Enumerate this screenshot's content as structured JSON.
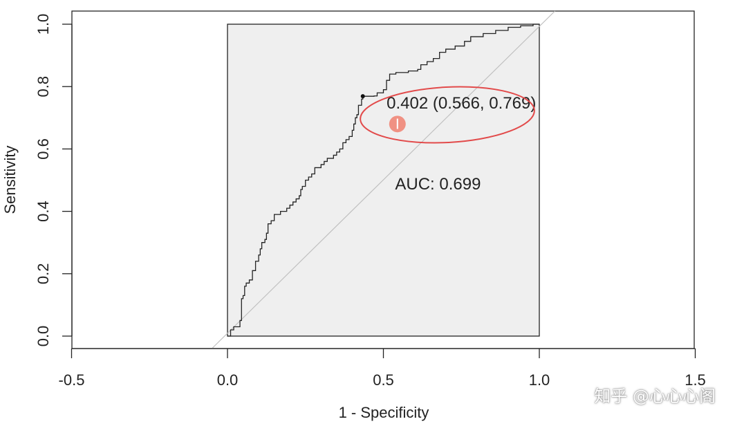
{
  "chart_data": {
    "type": "line",
    "xlabel": "1 - Specificity",
    "ylabel": "Sensitivity",
    "xlim": [
      -0.5,
      1.5
    ],
    "ylim": [
      0,
      1
    ],
    "x_ticks": [
      "-0.5",
      "0.0",
      "0.5",
      "1.0",
      "1.5"
    ],
    "y_ticks": [
      "0.0",
      "0.2",
      "0.4",
      "0.6",
      "0.8",
      "1.0"
    ],
    "grid": false,
    "series": [
      {
        "values_xy": [
          [
            0.0,
            0.0
          ],
          [
            0.01,
            0.02
          ],
          [
            0.02,
            0.03
          ],
          [
            0.03,
            0.03
          ],
          [
            0.04,
            0.05
          ],
          [
            0.045,
            0.12
          ],
          [
            0.05,
            0.13
          ],
          [
            0.055,
            0.16
          ],
          [
            0.06,
            0.17
          ],
          [
            0.07,
            0.18
          ],
          [
            0.08,
            0.21
          ],
          [
            0.09,
            0.24
          ],
          [
            0.1,
            0.26
          ],
          [
            0.105,
            0.28
          ],
          [
            0.11,
            0.3
          ],
          [
            0.12,
            0.31
          ],
          [
            0.125,
            0.33
          ],
          [
            0.13,
            0.36
          ],
          [
            0.14,
            0.37
          ],
          [
            0.15,
            0.39
          ],
          [
            0.17,
            0.4
          ],
          [
            0.19,
            0.41
          ],
          [
            0.2,
            0.42
          ],
          [
            0.21,
            0.43
          ],
          [
            0.22,
            0.44
          ],
          [
            0.23,
            0.45
          ],
          [
            0.235,
            0.47
          ],
          [
            0.24,
            0.48
          ],
          [
            0.25,
            0.5
          ],
          [
            0.26,
            0.51
          ],
          [
            0.27,
            0.52
          ],
          [
            0.28,
            0.54
          ],
          [
            0.3,
            0.55
          ],
          [
            0.31,
            0.56
          ],
          [
            0.32,
            0.57
          ],
          [
            0.34,
            0.58
          ],
          [
            0.35,
            0.59
          ],
          [
            0.36,
            0.6
          ],
          [
            0.37,
            0.62
          ],
          [
            0.38,
            0.63
          ],
          [
            0.39,
            0.64
          ],
          [
            0.4,
            0.66
          ],
          [
            0.405,
            0.68
          ],
          [
            0.41,
            0.7
          ],
          [
            0.415,
            0.71
          ],
          [
            0.42,
            0.74
          ],
          [
            0.43,
            0.76
          ],
          [
            0.434,
            0.769
          ],
          [
            0.47,
            0.77
          ],
          [
            0.48,
            0.78
          ],
          [
            0.5,
            0.79
          ],
          [
            0.51,
            0.82
          ],
          [
            0.52,
            0.84
          ],
          [
            0.54,
            0.845
          ],
          [
            0.58,
            0.85
          ],
          [
            0.61,
            0.855
          ],
          [
            0.62,
            0.87
          ],
          [
            0.64,
            0.88
          ],
          [
            0.66,
            0.89
          ],
          [
            0.68,
            0.91
          ],
          [
            0.7,
            0.92
          ],
          [
            0.73,
            0.93
          ],
          [
            0.76,
            0.945
          ],
          [
            0.78,
            0.96
          ],
          [
            0.82,
            0.97
          ],
          [
            0.86,
            0.98
          ],
          [
            0.9,
            0.99
          ],
          [
            0.94,
            0.995
          ],
          [
            0.98,
            1.0
          ],
          [
            1.0,
            1.0
          ]
        ]
      }
    ],
    "reference_line": {
      "from": [
        -0.05,
        -0.05
      ],
      "to": [
        1.05,
        1.05
      ],
      "color": "#c0c0c0"
    },
    "plot_region": {
      "x": [
        0,
        1
      ],
      "y": [
        0,
        1
      ],
      "fill": "#efefef"
    },
    "best_point": {
      "x": 0.434,
      "y": 0.769
    },
    "annotations": {
      "threshold_label": "0.402 (0.566, 0.769)",
      "threshold_label_pos": [
        0.75,
        0.73
      ],
      "auc_label": "AUC: 0.699",
      "auc_label_pos": [
        0.675,
        0.47
      ]
    },
    "highlight": {
      "ellipse_color": "#e24a4a",
      "cursor_color": "#f08070",
      "cursor_pos": [
        0.545,
        0.68
      ]
    }
  },
  "watermark": "知乎 @心心心阁"
}
